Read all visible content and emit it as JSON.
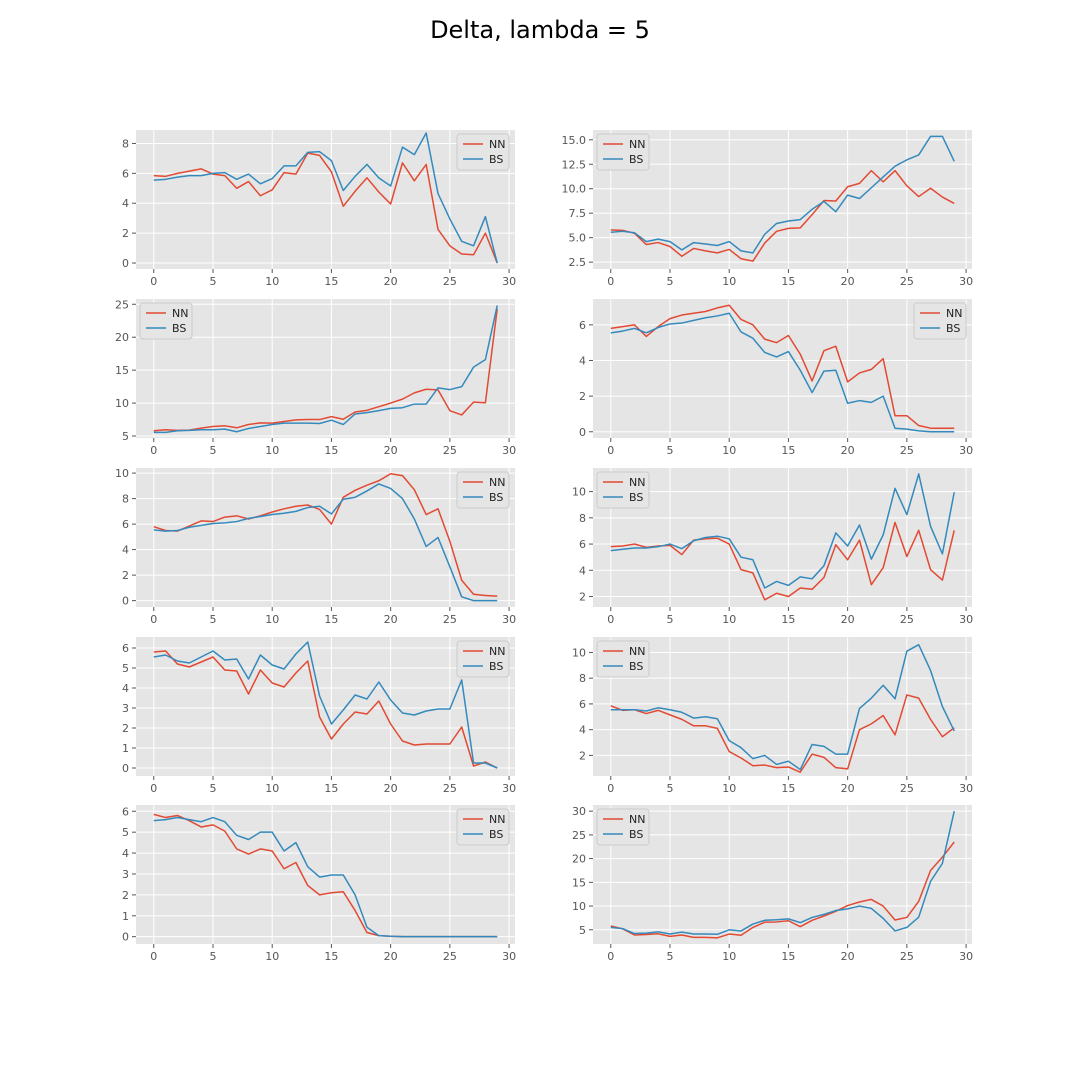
{
  "figure": {
    "title": "Delta, lambda = 5"
  },
  "style": {
    "plot_bg": "#e5e5e5",
    "grid_color": "#ffffff",
    "legend_bg": "#e5e5e5",
    "legend_border": "#cccccc",
    "colors": {
      "NN": "#e24a33",
      "BS": "#348abd"
    }
  },
  "chart_data": [
    {
      "type": "line",
      "xlim": [
        -1.5,
        30.5
      ],
      "ylim": [
        -0.4,
        8.9
      ],
      "xticks": [
        0,
        5,
        10,
        15,
        20,
        25,
        30
      ],
      "yticks": [
        0,
        2,
        4,
        6,
        8
      ],
      "legend_position": "upper right",
      "grid": true,
      "series": [
        {
          "name": "NN",
          "values": [
            5.85,
            5.8,
            6.0,
            6.15,
            6.3,
            5.95,
            5.85,
            5.0,
            5.45,
            4.5,
            4.9,
            6.05,
            5.95,
            7.35,
            7.2,
            6.1,
            3.8,
            4.8,
            5.7,
            4.75,
            3.95,
            6.7,
            5.5,
            6.6,
            2.25,
            1.15,
            0.6,
            0.55,
            2.0,
            0.0
          ]
        },
        {
          "name": "BS",
          "values": [
            5.55,
            5.6,
            5.75,
            5.85,
            5.85,
            6.0,
            6.05,
            5.6,
            5.95,
            5.3,
            5.65,
            6.5,
            6.5,
            7.4,
            7.45,
            6.85,
            4.85,
            5.8,
            6.6,
            5.7,
            5.15,
            7.75,
            7.25,
            8.7,
            4.65,
            2.95,
            1.45,
            1.15,
            3.1,
            0.0
          ]
        }
      ]
    },
    {
      "type": "line",
      "xlim": [
        -1.5,
        30.5
      ],
      "ylim": [
        1.8,
        16.0
      ],
      "xticks": [
        0,
        5,
        10,
        15,
        20,
        25,
        30
      ],
      "yticks": [
        2.5,
        5.0,
        7.5,
        10.0,
        12.5,
        15.0
      ],
      "ytick_labels": [
        "2.5",
        "5.0",
        "7.5",
        "10.0",
        "12.5",
        "15.0"
      ],
      "legend_position": "upper left",
      "grid": true,
      "series": [
        {
          "name": "NN",
          "values": [
            5.8,
            5.75,
            5.45,
            4.3,
            4.5,
            4.1,
            3.1,
            3.9,
            3.65,
            3.45,
            3.8,
            2.85,
            2.6,
            4.45,
            5.65,
            5.95,
            6.0,
            7.35,
            8.8,
            8.75,
            10.2,
            10.55,
            11.85,
            10.7,
            11.85,
            10.3,
            9.2,
            10.05,
            9.15,
            8.5
          ]
        },
        {
          "name": "BS",
          "values": [
            5.55,
            5.65,
            5.5,
            4.6,
            4.85,
            4.6,
            3.75,
            4.5,
            4.35,
            4.2,
            4.6,
            3.65,
            3.45,
            5.35,
            6.45,
            6.7,
            6.85,
            7.9,
            8.7,
            7.65,
            9.35,
            9.0,
            10.1,
            11.2,
            12.3,
            12.95,
            13.45,
            15.35,
            15.35,
            12.8
          ]
        }
      ]
    },
    {
      "type": "line",
      "xlim": [
        -1.5,
        30.5
      ],
      "ylim": [
        4.7,
        25.8
      ],
      "xticks": [
        0,
        5,
        10,
        15,
        20,
        25,
        30
      ],
      "yticks": [
        5,
        10,
        15,
        20,
        25
      ],
      "legend_position": "upper left",
      "grid": true,
      "series": [
        {
          "name": "NN",
          "values": [
            5.8,
            5.95,
            5.85,
            5.9,
            6.2,
            6.45,
            6.55,
            6.25,
            6.75,
            7.0,
            6.95,
            7.2,
            7.45,
            7.5,
            7.5,
            7.95,
            7.55,
            8.65,
            8.9,
            9.45,
            10.0,
            10.6,
            11.55,
            12.1,
            12.0,
            8.85,
            8.2,
            10.15,
            10.05,
            24.3
          ]
        },
        {
          "name": "BS",
          "values": [
            5.55,
            5.55,
            5.8,
            5.85,
            5.95,
            5.95,
            6.05,
            5.65,
            6.15,
            6.45,
            6.75,
            6.95,
            6.95,
            6.95,
            6.9,
            7.4,
            6.75,
            8.35,
            8.55,
            8.85,
            9.2,
            9.3,
            9.85,
            9.85,
            12.3,
            12.05,
            12.5,
            15.45,
            16.6,
            24.8
          ]
        }
      ]
    },
    {
      "type": "line",
      "xlim": [
        -1.5,
        30.5
      ],
      "ylim": [
        -0.35,
        7.45
      ],
      "xticks": [
        0,
        5,
        10,
        15,
        20,
        25,
        30
      ],
      "yticks": [
        0,
        2,
        4,
        6
      ],
      "legend_position": "upper right",
      "grid": true,
      "series": [
        {
          "name": "NN",
          "values": [
            5.8,
            5.9,
            6.0,
            5.35,
            5.9,
            6.35,
            6.55,
            6.65,
            6.75,
            6.95,
            7.1,
            6.3,
            6.0,
            5.2,
            5.0,
            5.4,
            4.35,
            2.85,
            4.55,
            4.8,
            2.8,
            3.3,
            3.5,
            4.1,
            0.9,
            0.9,
            0.35,
            0.2,
            0.2,
            0.2
          ]
        },
        {
          "name": "BS",
          "values": [
            5.55,
            5.65,
            5.8,
            5.55,
            5.85,
            6.05,
            6.1,
            6.25,
            6.4,
            6.5,
            6.65,
            5.6,
            5.25,
            4.45,
            4.2,
            4.5,
            3.45,
            2.2,
            3.4,
            3.45,
            1.6,
            1.75,
            1.65,
            2.0,
            0.2,
            0.15,
            0.05,
            0.0,
            0.0,
            0.0
          ]
        }
      ]
    },
    {
      "type": "line",
      "xlim": [
        -1.5,
        30.5
      ],
      "ylim": [
        -0.5,
        10.4
      ],
      "xticks": [
        0,
        5,
        10,
        15,
        20,
        25,
        30
      ],
      "yticks": [
        0,
        2,
        4,
        6,
        8,
        10
      ],
      "legend_position": "upper right",
      "grid": true,
      "series": [
        {
          "name": "NN",
          "values": [
            5.8,
            5.5,
            5.45,
            5.85,
            6.25,
            6.2,
            6.55,
            6.65,
            6.4,
            6.65,
            6.95,
            7.2,
            7.4,
            7.5,
            7.15,
            6.0,
            8.1,
            8.65,
            9.05,
            9.4,
            9.95,
            9.8,
            8.7,
            6.75,
            7.2,
            4.65,
            1.6,
            0.5,
            0.4,
            0.35
          ]
        },
        {
          "name": "BS",
          "values": [
            5.55,
            5.45,
            5.5,
            5.75,
            5.9,
            6.05,
            6.1,
            6.2,
            6.45,
            6.6,
            6.75,
            6.85,
            7.0,
            7.3,
            7.4,
            6.8,
            7.95,
            8.1,
            8.6,
            9.15,
            8.8,
            8.0,
            6.4,
            4.25,
            4.95,
            2.65,
            0.3,
            0.0,
            0.0,
            0.0
          ]
        }
      ]
    },
    {
      "type": "line",
      "xlim": [
        -1.5,
        30.5
      ],
      "ylim": [
        1.2,
        11.8
      ],
      "xticks": [
        0,
        5,
        10,
        15,
        20,
        25,
        30
      ],
      "yticks": [
        2,
        4,
        6,
        8,
        10
      ],
      "legend_position": "upper left",
      "grid": true,
      "series": [
        {
          "name": "NN",
          "values": [
            5.8,
            5.85,
            6.0,
            5.75,
            5.85,
            5.9,
            5.2,
            6.3,
            6.4,
            6.45,
            6.0,
            4.05,
            3.8,
            1.75,
            2.25,
            2.0,
            2.65,
            2.55,
            3.45,
            5.95,
            4.8,
            6.3,
            2.9,
            4.2,
            7.65,
            5.05,
            7.05,
            4.05,
            3.25,
            7.05
          ]
        },
        {
          "name": "BS",
          "values": [
            5.5,
            5.6,
            5.7,
            5.7,
            5.8,
            6.0,
            5.65,
            6.25,
            6.5,
            6.6,
            6.4,
            5.0,
            4.8,
            2.65,
            3.15,
            2.85,
            3.5,
            3.35,
            4.35,
            6.85,
            5.85,
            7.45,
            4.85,
            6.7,
            10.25,
            8.25,
            11.35,
            7.35,
            5.25,
            9.95
          ]
        }
      ]
    },
    {
      "type": "line",
      "xlim": [
        -1.5,
        30.5
      ],
      "ylim": [
        -0.4,
        6.55
      ],
      "xticks": [
        0,
        5,
        10,
        15,
        20,
        25,
        30
      ],
      "yticks": [
        0,
        1,
        2,
        3,
        4,
        5,
        6
      ],
      "legend_position": "upper right",
      "grid": true,
      "series": [
        {
          "name": "NN",
          "values": [
            5.8,
            5.85,
            5.2,
            5.05,
            5.3,
            5.55,
            4.9,
            4.85,
            3.7,
            4.9,
            4.25,
            4.05,
            4.75,
            5.35,
            2.55,
            1.45,
            2.2,
            2.8,
            2.7,
            3.35,
            2.2,
            1.35,
            1.15,
            1.2,
            1.2,
            1.2,
            2.05,
            0.1,
            0.3,
            0.0
          ]
        },
        {
          "name": "BS",
          "values": [
            5.55,
            5.65,
            5.35,
            5.25,
            5.55,
            5.85,
            5.4,
            5.45,
            4.45,
            5.65,
            5.15,
            4.95,
            5.7,
            6.3,
            3.6,
            2.2,
            2.9,
            3.65,
            3.45,
            4.3,
            3.4,
            2.75,
            2.65,
            2.85,
            2.95,
            2.95,
            4.4,
            0.25,
            0.25,
            0.0
          ]
        }
      ]
    },
    {
      "type": "line",
      "xlim": [
        -1.5,
        30.5
      ],
      "ylim": [
        0.4,
        11.2
      ],
      "xticks": [
        0,
        5,
        10,
        15,
        20,
        25,
        30
      ],
      "yticks": [
        2,
        4,
        6,
        8,
        10
      ],
      "legend_position": "upper left",
      "grid": true,
      "series": [
        {
          "name": "NN",
          "values": [
            5.85,
            5.5,
            5.55,
            5.25,
            5.5,
            5.15,
            4.8,
            4.3,
            4.3,
            4.1,
            2.3,
            1.8,
            1.2,
            1.25,
            1.05,
            1.1,
            0.7,
            2.1,
            1.85,
            1.05,
            0.95,
            4.0,
            4.45,
            5.1,
            3.6,
            6.7,
            6.45,
            4.8,
            3.45,
            4.15
          ]
        },
        {
          "name": "BS",
          "values": [
            5.55,
            5.55,
            5.55,
            5.45,
            5.7,
            5.55,
            5.35,
            4.9,
            5.0,
            4.85,
            3.15,
            2.6,
            1.75,
            2.0,
            1.3,
            1.55,
            0.9,
            2.85,
            2.7,
            2.1,
            2.1,
            5.65,
            6.45,
            7.45,
            6.4,
            10.1,
            10.6,
            8.6,
            5.8,
            3.9
          ]
        }
      ]
    },
    {
      "type": "line",
      "xlim": [
        -1.5,
        30.5
      ],
      "ylim": [
        -0.35,
        6.3
      ],
      "xticks": [
        0,
        5,
        10,
        15,
        20,
        25,
        30
      ],
      "yticks": [
        0,
        1,
        2,
        3,
        4,
        5,
        6
      ],
      "legend_position": "upper right",
      "grid": true,
      "series": [
        {
          "name": "NN",
          "values": [
            5.85,
            5.7,
            5.8,
            5.55,
            5.25,
            5.35,
            5.05,
            4.2,
            3.95,
            4.2,
            4.1,
            3.25,
            3.55,
            2.45,
            2.0,
            2.1,
            2.15,
            1.25,
            0.2,
            0.05,
            0.02,
            0.0,
            0.0,
            0.0,
            0.0,
            0.0,
            0.0,
            0.0,
            0.0,
            0.0
          ]
        },
        {
          "name": "BS",
          "values": [
            5.55,
            5.6,
            5.7,
            5.6,
            5.5,
            5.7,
            5.5,
            4.85,
            4.65,
            5.0,
            5.0,
            4.1,
            4.5,
            3.35,
            2.85,
            2.95,
            2.95,
            2.0,
            0.45,
            0.05,
            0.02,
            0.0,
            0.0,
            0.0,
            0.0,
            0.0,
            0.0,
            0.0,
            0.0,
            0.0
          ]
        }
      ]
    },
    {
      "type": "line",
      "xlim": [
        -1.5,
        30.5
      ],
      "ylim": [
        2.0,
        31.3
      ],
      "xticks": [
        0,
        5,
        10,
        15,
        20,
        25,
        30
      ],
      "yticks": [
        5,
        10,
        15,
        20,
        25,
        30
      ],
      "legend_position": "upper left",
      "grid": true,
      "series": [
        {
          "name": "NN",
          "values": [
            5.8,
            5.2,
            3.9,
            4.0,
            4.15,
            3.6,
            3.9,
            3.4,
            3.4,
            3.3,
            4.1,
            3.85,
            5.5,
            6.6,
            6.65,
            6.9,
            5.65,
            7.0,
            7.9,
            8.9,
            10.1,
            10.85,
            11.4,
            10.0,
            7.05,
            7.6,
            11.0,
            17.5,
            20.3,
            23.5
          ]
        },
        {
          "name": "BS",
          "values": [
            5.5,
            5.25,
            4.2,
            4.3,
            4.55,
            4.1,
            4.5,
            4.1,
            4.1,
            4.05,
            5.0,
            4.75,
            6.2,
            7.0,
            7.1,
            7.3,
            6.5,
            7.6,
            8.25,
            9.05,
            9.4,
            10.0,
            9.5,
            7.4,
            4.75,
            5.5,
            7.65,
            15.2,
            19.0,
            30.0
          ]
        }
      ]
    }
  ]
}
